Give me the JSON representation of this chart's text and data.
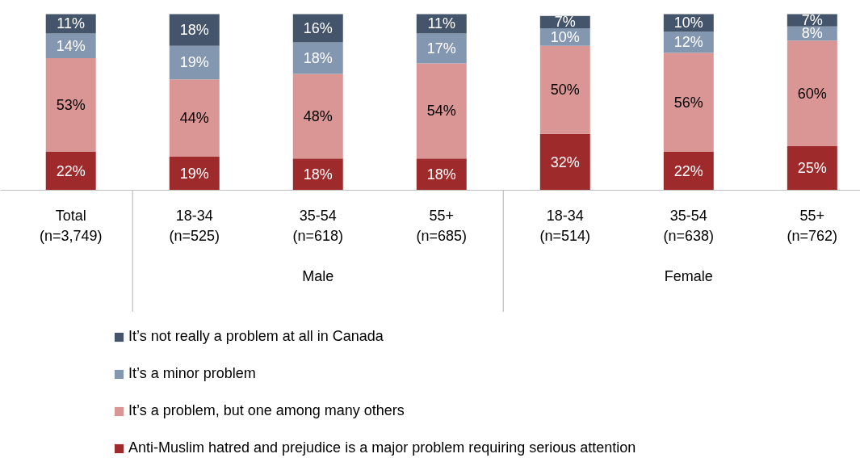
{
  "chart_data": {
    "type": "bar",
    "stacked": true,
    "legend": "bottom",
    "grid": false,
    "categories": [
      "Total\n(n=3,749)",
      "18-34\n(n=525)",
      "35-54\n(n=618)",
      "55+\n(n=685)",
      "18-34\n(n=514)",
      "35-54\n(n=638)",
      "55+\n(n=762)"
    ],
    "annotations": [
      "Male",
      "Female"
    ],
    "series": [
      {
        "name": "Anti-Muslim hatred and prejudice is a major problem requiring serious attention",
        "color": "#9e2a2b",
        "values": [
          22,
          19,
          18,
          18,
          32,
          22,
          25
        ],
        "value_labels": [
          "22%",
          "19%",
          "18%",
          "18%",
          "32%",
          "22%",
          "25%"
        ]
      },
      {
        "name": "It’s a problem, but one among many others",
        "color": "#d99694",
        "values": [
          53,
          44,
          48,
          54,
          50,
          56,
          60
        ],
        "value_labels": [
          "53%",
          "44%",
          "48%",
          "54%",
          "50%",
          "56%",
          "60%"
        ]
      },
      {
        "name": "It’s a minor problem",
        "color": "#8497b0",
        "values": [
          14,
          19,
          18,
          17,
          10,
          12,
          8
        ],
        "value_labels": [
          "14%",
          "19%",
          "18%",
          "17%",
          "10%",
          "12%",
          "8%"
        ]
      },
      {
        "name": "It’s not really a problem at all in Canada",
        "color": "#44546a",
        "values": [
          11,
          18,
          16,
          11,
          7,
          10,
          7
        ],
        "value_labels": [
          "11%",
          "18%",
          "16%",
          "11%",
          "7%",
          "10%",
          "7%"
        ]
      }
    ]
  }
}
